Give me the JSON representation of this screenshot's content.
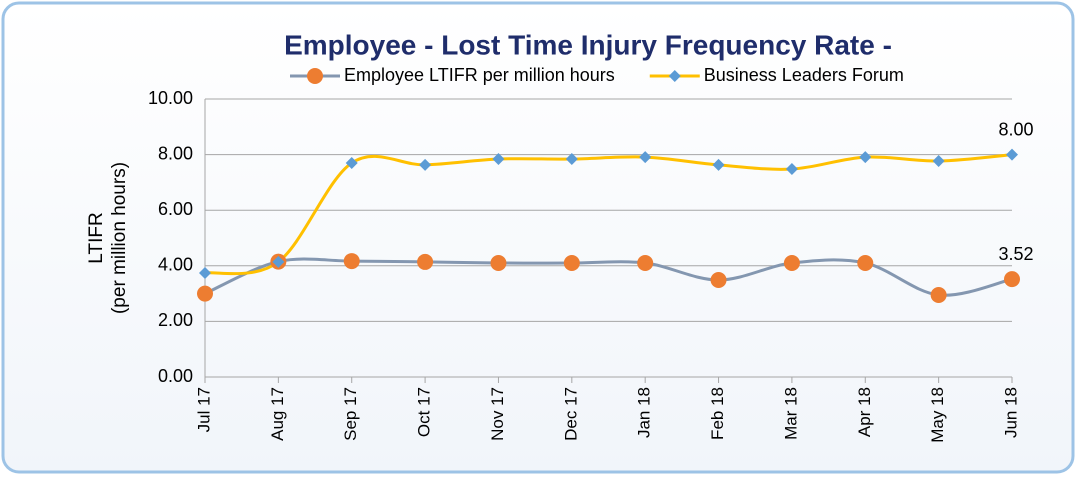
{
  "chart_data": {
    "type": "line",
    "title": "Employee - Lost Time Injury Frequency Rate -",
    "y_label": [
      "LTIFR",
      "(per million hours)"
    ],
    "categories": [
      "Jul 17",
      "Aug 17",
      "Sep 17",
      "Oct 17",
      "Nov 17",
      "Dec 17",
      "Jan 18",
      "Feb 18",
      "Mar 18",
      "Apr 18",
      "May 18",
      "Jun 18"
    ],
    "series": [
      {
        "name": "Employee LTIFR per million hours",
        "color": "#ed7d31",
        "line_color": "#8497b0",
        "marker": "circle",
        "values": [
          3.0,
          4.15,
          4.17,
          4.14,
          4.1,
          4.1,
          4.1,
          3.49,
          4.1,
          4.1,
          2.95,
          3.52
        ],
        "value_labels": [
          null,
          null,
          null,
          null,
          null,
          null,
          null,
          null,
          null,
          null,
          null,
          "3.52"
        ]
      },
      {
        "name": "Business Leaders Forum",
        "color": "#5b9bd5",
        "line_color": "#ffc000",
        "marker": "diamond",
        "values": [
          3.74,
          4.14,
          7.7,
          7.63,
          7.84,
          7.84,
          7.91,
          7.63,
          7.48,
          7.91,
          7.77,
          8.0
        ],
        "value_labels": [
          null,
          null,
          null,
          null,
          null,
          null,
          null,
          null,
          null,
          null,
          null,
          "8.00"
        ]
      }
    ],
    "ylim": [
      0,
      10
    ],
    "yticks": [
      {
        "value": 0,
        "label": "0.00"
      },
      {
        "value": 2,
        "label": "2.00"
      },
      {
        "value": 4,
        "label": "4.00"
      },
      {
        "value": 6,
        "label": "6.00"
      },
      {
        "value": 8,
        "label": "8.00"
      },
      {
        "value": 10,
        "label": "10.00"
      }
    ],
    "grid": true,
    "legend": "top",
    "smooth": true
  }
}
